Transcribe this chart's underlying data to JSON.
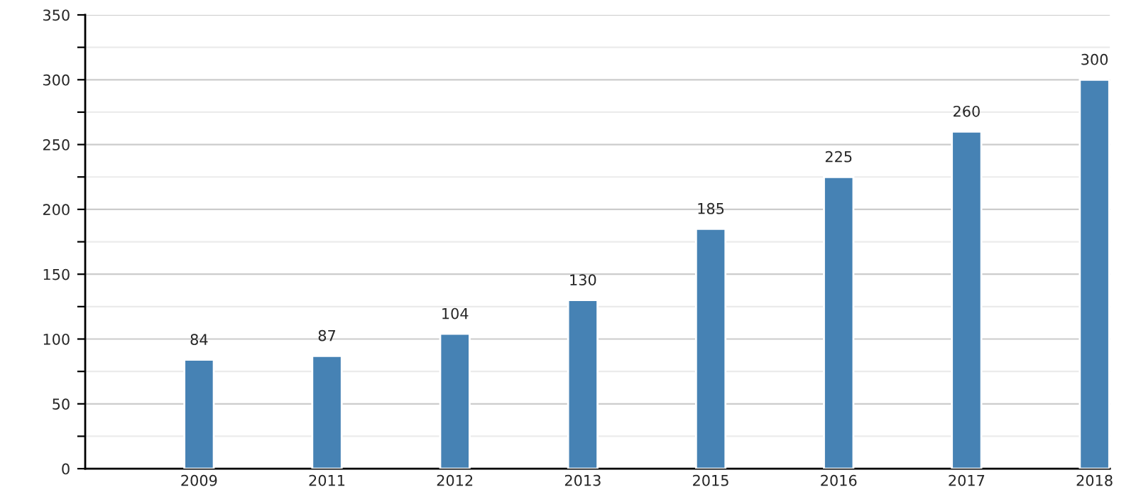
{
  "chart_data": {
    "type": "bar",
    "categories": [
      "2009",
      "2011",
      "2012",
      "2013",
      "2015",
      "2016",
      "2017",
      "2018"
    ],
    "values": [
      84,
      87,
      104,
      130,
      185,
      225,
      260,
      300
    ],
    "color": "#4682b4",
    "ylim": [
      0,
      350
    ],
    "yticks": [
      0,
      {
        "value": 25,
        "label": null
      },
      50,
      {
        "value": 75,
        "label": null
      },
      100,
      {
        "value": 125,
        "label": null
      },
      150,
      {
        "value": 175,
        "label": null
      },
      200,
      {
        "value": 225,
        "label": null
      },
      250,
      {
        "value": 275,
        "label": null
      },
      300,
      {
        "value": 325,
        "label": null
      },
      350
    ],
    "grid": "y",
    "data_labels": true
  }
}
